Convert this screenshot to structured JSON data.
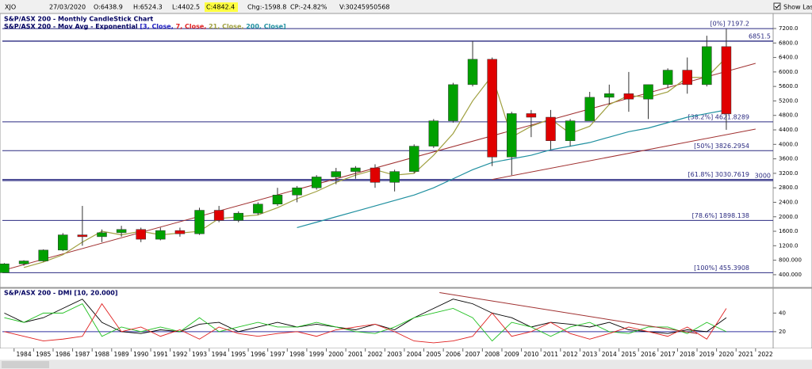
{
  "header": {
    "symbol": "XJO",
    "date": "27/03/2020",
    "open": "O:6438.9",
    "high": "H:6524.3",
    "low": "L:4402.5",
    "close": "C:4842.4",
    "change": "Chg:-1598.8",
    "change_pct": "CP:-24.82%",
    "volume": "V:30245950568",
    "show_last": "Show Last"
  },
  "chart_data": [
    {
      "type": "candlestick",
      "title": "S&P/ASX 200 - Monthly CandleStick Chart",
      "legend": {
        "text": "S&P/ASX 200 - Mov Avg - Exponential",
        "params": [
          {
            "text": "[3, Close,",
            "color": "#2020c0"
          },
          {
            "text": "7, Close,",
            "color": "#e02020"
          },
          {
            "text": "21, Close,",
            "color": "#a0a040"
          },
          {
            "text": "200, Close]",
            "color": "#2090a0"
          }
        ]
      },
      "x": [
        1983,
        1984,
        1985,
        1986,
        1987,
        1988,
        1989,
        1990,
        1991,
        1992,
        1993,
        1994,
        1995,
        1996,
        1997,
        1998,
        1999,
        2000,
        2001,
        2002,
        2003,
        2004,
        2005,
        2006,
        2007,
        2008,
        2009,
        2010,
        2011,
        2012,
        2013,
        2014,
        2015,
        2016,
        2017,
        2018,
        2019,
        2020
      ],
      "open": [
        455,
        700,
        780,
        1080,
        1500,
        1450,
        1560,
        1650,
        1380,
        1620,
        1530,
        2180,
        1900,
        2100,
        2350,
        2600,
        2800,
        3100,
        3250,
        3350,
        2950,
        3250,
        3950,
        4650,
        5650,
        6350,
        3650,
        4850,
        4750,
        4100,
        4650,
        5300,
        5400,
        5250,
        5650,
        6050,
        5650,
        6700
      ],
      "high": [
        720,
        800,
        1100,
        1550,
        2300,
        1650,
        1750,
        1700,
        1700,
        1700,
        2250,
        2300,
        2150,
        2400,
        2800,
        2850,
        3150,
        3350,
        3400,
        3450,
        3300,
        4000,
        4700,
        5700,
        6850,
        6400,
        4900,
        4950,
        4950,
        4700,
        5450,
        5650,
        6000,
        5650,
        6100,
        6400,
        7000,
        7197
      ],
      "low": [
        455,
        650,
        760,
        1050,
        1200,
        1300,
        1450,
        1300,
        1350,
        1450,
        1500,
        1850,
        1850,
        2050,
        2300,
        2400,
        2750,
        2900,
        3050,
        2800,
        2700,
        3200,
        3900,
        4600,
        5600,
        3400,
        3150,
        4200,
        3850,
        3950,
        4650,
        5100,
        4900,
        4700,
        5550,
        5400,
        5600,
        4402
      ],
      "close": [
        700,
        780,
        1080,
        1500,
        1450,
        1560,
        1650,
        1380,
        1620,
        1530,
        2180,
        1900,
        2100,
        2350,
        2600,
        2800,
        3100,
        3250,
        3350,
        2950,
        3250,
        3950,
        4650,
        5650,
        6350,
        3650,
        4850,
        4750,
        4100,
        4650,
        5300,
        5400,
        5250,
        5650,
        6050,
        5650,
        6700,
        4842
      ],
      "up_color": "#00a000",
      "down_color": "#e00000",
      "moving_averages": [
        {
          "color": "#a0a040",
          "x": [
            1984,
            1985,
            1986,
            1987,
            1988,
            1989,
            1990,
            1991,
            1992,
            1993,
            1994,
            1995,
            1996,
            1997,
            1998,
            1999,
            2000,
            2001,
            2002,
            2003,
            2004,
            2005,
            2006,
            2007,
            2008,
            2009,
            2010,
            2011,
            2012,
            2013,
            2014,
            2015,
            2016,
            2017,
            2018,
            2019,
            2020
          ],
          "values": [
            600,
            750,
            950,
            1300,
            1600,
            1500,
            1600,
            1500,
            1550,
            1600,
            1950,
            2000,
            2050,
            2250,
            2500,
            2700,
            2950,
            3150,
            3300,
            3150,
            3200,
            3700,
            4300,
            5200,
            5900,
            4200,
            4500,
            4700,
            4300,
            4500,
            5100,
            5350,
            5300,
            5450,
            5850,
            5850,
            6400
          ]
        },
        {
          "color": "#2090a0",
          "x": [
            1998,
            1999,
            2000,
            2001,
            2002,
            2003,
            2004,
            2005,
            2006,
            2007,
            2008,
            2009,
            2010,
            2011,
            2012,
            2013,
            2014,
            2015,
            2016,
            2017,
            2018,
            2019,
            2020
          ],
          "values": [
            1700,
            1850,
            2000,
            2150,
            2300,
            2450,
            2600,
            2800,
            3050,
            3300,
            3500,
            3600,
            3700,
            3850,
            3950,
            4050,
            4200,
            4350,
            4450,
            4600,
            4750,
            4850,
            4950
          ]
        }
      ],
      "levels": [
        {
          "label": "[0%] 7197.2",
          "value": 7197.2
        },
        {
          "label": "[38.2%] 4621.8289",
          "value": 4621.8289
        },
        {
          "label": "[50%] 3826.2954",
          "value": 3826.2954
        },
        {
          "label": "[61.8%] 3030.7619",
          "value": 3030.7619
        },
        {
          "label": "[78.6%] 1898.138",
          "value": 1898.138
        },
        {
          "label": "[100%] 455.3908",
          "value": 455.3908
        }
      ],
      "marked_levels": [
        {
          "label": "6851.5",
          "value": 6851.5
        },
        {
          "label": "3000",
          "value": 3000
        }
      ],
      "trend_lines": [
        {
          "x": [
            1983,
            2022
          ],
          "values": [
            455,
            6237
          ]
        },
        {
          "x": [
            2008.5,
            2022
          ],
          "values": [
            3030,
            4423
          ]
        }
      ],
      "xlim": [
        1983.4,
        2022.9
      ],
      "ylim": [
        70,
        7550
      ],
      "xticks": [
        1984,
        1985,
        1986,
        1987,
        1988,
        1989,
        1990,
        1991,
        1992,
        1993,
        1994,
        1995,
        1996,
        1997,
        1998,
        1999,
        2000,
        2001,
        2002,
        2003,
        2004,
        2005,
        2006,
        2007,
        2008,
        2009,
        2010,
        2011,
        2012,
        2013,
        2014,
        2015,
        2016,
        2017,
        2018,
        2019,
        2020,
        2021,
        2022
      ],
      "yticks": [
        {
          "value": 400,
          "label": "400.000"
        },
        {
          "value": 800,
          "label": "800.000"
        },
        {
          "value": 1200,
          "label": "1200.0"
        },
        {
          "value": 1600,
          "label": "1600.0"
        },
        {
          "value": 2000,
          "label": "2000.0"
        },
        {
          "value": 2400,
          "label": "2400.0"
        },
        {
          "value": 2800,
          "label": "2800.0"
        },
        {
          "value": 3200,
          "label": "3200.0"
        },
        {
          "value": 3600,
          "label": "3600.0"
        },
        {
          "value": 4000,
          "label": "4000.0"
        },
        {
          "value": 4400,
          "label": "4400.0"
        },
        {
          "value": 4800,
          "label": "4800.0"
        },
        {
          "value": 5200,
          "label": "5200.0"
        },
        {
          "value": 5600,
          "label": "5600.0"
        },
        {
          "value": 6000,
          "label": "6000.0"
        },
        {
          "value": 6400,
          "label": "6400.0"
        },
        {
          "value": 6800,
          "label": "6800.0"
        },
        {
          "value": 7200,
          "label": "7200.0"
        }
      ]
    },
    {
      "type": "line",
      "title": "S&P/ASX 200 - DMI [10, 20.000]",
      "x": [
        1983,
        1984,
        1985,
        1986,
        1987,
        1988,
        1989,
        1990,
        1991,
        1992,
        1993,
        1994,
        1995,
        1996,
        1997,
        1998,
        1999,
        2000,
        2001,
        2002,
        2003,
        2004,
        2005,
        2006,
        2007,
        2008,
        2009,
        2010,
        2011,
        2012,
        2013,
        2014,
        2015,
        2016,
        2017,
        2018,
        2019,
        2020
      ],
      "series": [
        {
          "color": "#000000",
          "values": [
            40,
            30,
            35,
            45,
            55,
            30,
            20,
            18,
            22,
            20,
            28,
            30,
            20,
            25,
            30,
            25,
            28,
            25,
            22,
            28,
            22,
            35,
            45,
            55,
            50,
            40,
            35,
            25,
            30,
            28,
            25,
            30,
            22,
            20,
            18,
            22,
            20,
            35
          ]
        },
        {
          "color": "#20c020",
          "values": [
            35,
            30,
            40,
            40,
            50,
            15,
            25,
            20,
            25,
            20,
            35,
            20,
            25,
            30,
            25,
            25,
            30,
            25,
            20,
            18,
            25,
            35,
            40,
            45,
            35,
            10,
            30,
            25,
            15,
            25,
            30,
            20,
            18,
            25,
            25,
            18,
            30,
            20
          ]
        },
        {
          "color": "#e02020",
          "values": [
            20,
            15,
            10,
            12,
            15,
            50,
            20,
            25,
            15,
            22,
            12,
            25,
            18,
            15,
            18,
            20,
            15,
            22,
            25,
            28,
            20,
            10,
            8,
            10,
            15,
            40,
            15,
            20,
            30,
            18,
            12,
            18,
            25,
            20,
            15,
            25,
            12,
            45
          ]
        }
      ],
      "reference": 20,
      "trend_lines": [
        {
          "x": [
            2005.8,
            2019
          ],
          "values": [
            62,
            18
          ]
        }
      ],
      "xlim": [
        1983.4,
        2022.9
      ],
      "ylim": [
        2,
        65
      ],
      "yticks": [
        20,
        40
      ]
    }
  ]
}
